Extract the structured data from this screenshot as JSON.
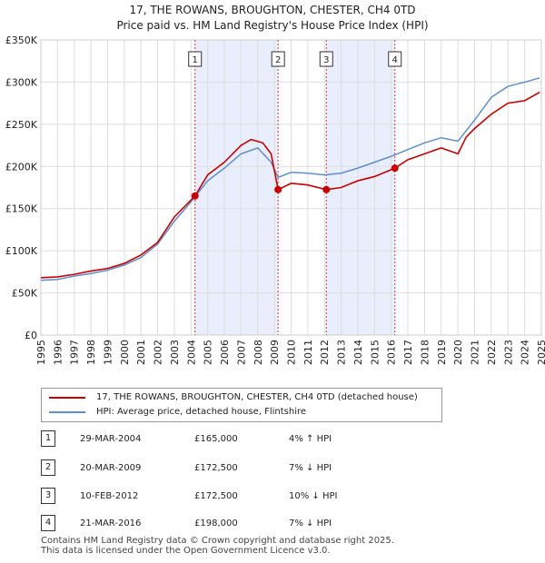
{
  "header": {
    "title_line1": "17, THE ROWANS, BROUGHTON, CHESTER, CH4 0TD",
    "title_line2": "Price paid vs. HM Land Registry's House Price Index (HPI)"
  },
  "chart_data": {
    "type": "line",
    "x_range": [
      1995,
      2025
    ],
    "y_range": [
      0,
      350000
    ],
    "x_ticks": [
      "1995",
      "1996",
      "1997",
      "1998",
      "1999",
      "2000",
      "2001",
      "2002",
      "2003",
      "2004",
      "2005",
      "2006",
      "2007",
      "2008",
      "2009",
      "2010",
      "2011",
      "2012",
      "2013",
      "2014",
      "2015",
      "2016",
      "2017",
      "2018",
      "2019",
      "2020",
      "2021",
      "2022",
      "2023",
      "2024",
      "2025"
    ],
    "y_ticks": [
      {
        "value": 0,
        "label": "£0"
      },
      {
        "value": 50000,
        "label": "£50K"
      },
      {
        "value": 100000,
        "label": "£100K"
      },
      {
        "value": 150000,
        "label": "£150K"
      },
      {
        "value": 200000,
        "label": "£200K"
      },
      {
        "value": 250000,
        "label": "£250K"
      },
      {
        "value": 300000,
        "label": "£300K"
      },
      {
        "value": 350000,
        "label": "£350K"
      }
    ],
    "shaded_periods": [
      [
        2004.24,
        2009.22
      ],
      [
        2012.11,
        2016.22
      ]
    ],
    "series": [
      {
        "name": "17, THE ROWANS, BROUGHTON, CHESTER, CH4 0TD (detached house)",
        "color": "#cc0000",
        "points": [
          [
            1995,
            68000
          ],
          [
            1996,
            69000
          ],
          [
            1997,
            72000
          ],
          [
            1998,
            76000
          ],
          [
            1999,
            79000
          ],
          [
            2000,
            85000
          ],
          [
            2001,
            95000
          ],
          [
            2002,
            110000
          ],
          [
            2003,
            140000
          ],
          [
            2004.24,
            165000
          ],
          [
            2005,
            190000
          ],
          [
            2006,
            205000
          ],
          [
            2007,
            225000
          ],
          [
            2007.6,
            232000
          ],
          [
            2008.3,
            228000
          ],
          [
            2008.8,
            215000
          ],
          [
            2009.22,
            172500
          ],
          [
            2010,
            180000
          ],
          [
            2011,
            178000
          ],
          [
            2012.11,
            172500
          ],
          [
            2013,
            175000
          ],
          [
            2014,
            183000
          ],
          [
            2015,
            188000
          ],
          [
            2016.22,
            198000
          ],
          [
            2017,
            208000
          ],
          [
            2018,
            215000
          ],
          [
            2019,
            222000
          ],
          [
            2020,
            215000
          ],
          [
            2020.5,
            235000
          ],
          [
            2021,
            245000
          ],
          [
            2022,
            262000
          ],
          [
            2023,
            275000
          ],
          [
            2024,
            278000
          ],
          [
            2024.9,
            288000
          ]
        ]
      },
      {
        "name": "HPI: Average price, detached house, Flintshire",
        "color": "#5b8fd0",
        "points": [
          [
            1995,
            65000
          ],
          [
            1996,
            66000
          ],
          [
            1997,
            70000
          ],
          [
            1998,
            73000
          ],
          [
            1999,
            77000
          ],
          [
            2000,
            83000
          ],
          [
            2001,
            92000
          ],
          [
            2002,
            108000
          ],
          [
            2003,
            135000
          ],
          [
            2004,
            158000
          ],
          [
            2005,
            183000
          ],
          [
            2006,
            198000
          ],
          [
            2007,
            215000
          ],
          [
            2008,
            222000
          ],
          [
            2008.8,
            205000
          ],
          [
            2009.22,
            187000
          ],
          [
            2010,
            193000
          ],
          [
            2011,
            192000
          ],
          [
            2012,
            190000
          ],
          [
            2013,
            192000
          ],
          [
            2014,
            198000
          ],
          [
            2015,
            205000
          ],
          [
            2016,
            212000
          ],
          [
            2017,
            220000
          ],
          [
            2018,
            228000
          ],
          [
            2019,
            234000
          ],
          [
            2020,
            230000
          ],
          [
            2021,
            255000
          ],
          [
            2022,
            282000
          ],
          [
            2023,
            295000
          ],
          [
            2024,
            300000
          ],
          [
            2024.9,
            305000
          ]
        ]
      }
    ],
    "sales": [
      {
        "label": "1",
        "x": 2004.24,
        "y": 165000
      },
      {
        "label": "2",
        "x": 2009.22,
        "y": 172500
      },
      {
        "label": "3",
        "x": 2012.11,
        "y": 172500
      },
      {
        "label": "4",
        "x": 2016.22,
        "y": 198000
      }
    ]
  },
  "legend": {
    "property_label": "17, THE ROWANS, BROUGHTON, CHESTER, CH4 0TD (detached house)",
    "hpi_label": "HPI: Average price, detached house, Flintshire"
  },
  "transactions": [
    {
      "num": "1",
      "date": "29-MAR-2004",
      "price": "£165,000",
      "hpi": "4% ↑ HPI"
    },
    {
      "num": "2",
      "date": "20-MAR-2009",
      "price": "£172,500",
      "hpi": "7% ↓ HPI"
    },
    {
      "num": "3",
      "date": "10-FEB-2012",
      "price": "£172,500",
      "hpi": "10% ↓ HPI"
    },
    {
      "num": "4",
      "date": "21-MAR-2016",
      "price": "£198,000",
      "hpi": "7% ↓ HPI"
    }
  ],
  "footer": {
    "line1": "Contains HM Land Registry data © Crown copyright and database right 2025.",
    "line2": "This data is licensed under the Open Government Licence v3.0."
  }
}
